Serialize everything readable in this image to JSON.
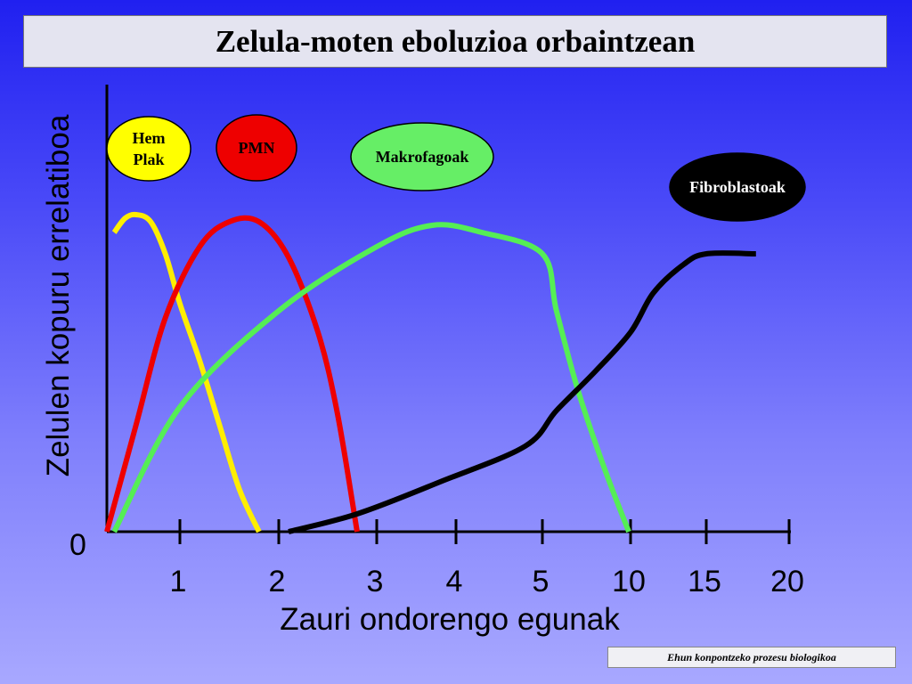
{
  "slide": {
    "title": "Zelula-moten eboluzioa orbaintzean",
    "footer": "Ehun konpontzeko prozesu biologikoa"
  },
  "chart_data": {
    "type": "line",
    "xlabel": "Zauri ondorengo egunak",
    "ylabel": "Zelulen kopuru errelatiboa",
    "y_tick_labels": [
      "0"
    ],
    "x_tick_labels": [
      "1",
      "2",
      "3",
      "4",
      "5",
      "10",
      "15",
      "20"
    ],
    "x_scale": "non-linear (1,2,3,4,5 then 10,15,20)",
    "series": [
      {
        "name": "Hem Plak",
        "color": "#ffee00",
        "label_bg": "#ffff00",
        "label_fg": "#000000",
        "x": [
          0.1,
          0.25,
          0.4,
          0.6,
          0.8,
          1.0,
          1.2,
          1.4,
          1.6,
          1.8
        ],
        "y": [
          0.84,
          0.88,
          0.89,
          0.87,
          0.78,
          0.64,
          0.48,
          0.3,
          0.12,
          0
        ]
      },
      {
        "name": "PMN",
        "color": "#ee0000",
        "label_bg": "#ee0000",
        "label_fg": "#000000",
        "x": [
          0,
          0.4,
          0.8,
          1.2,
          1.5,
          1.8,
          2.1,
          2.4,
          2.6,
          2.8
        ],
        "y": [
          0,
          0.3,
          0.6,
          0.8,
          0.87,
          0.87,
          0.77,
          0.56,
          0.33,
          0
        ]
      },
      {
        "name": "Makrofagoak",
        "color": "#55ee55",
        "label_bg": "#66ee66",
        "label_fg": "#000000",
        "x": [
          0.1,
          1,
          2,
          3,
          3.7,
          4.3,
          5,
          5.8,
          7,
          8.5,
          9.9
        ],
        "y": [
          0,
          0.35,
          0.62,
          0.8,
          0.86,
          0.84,
          0.78,
          0.62,
          0.4,
          0.18,
          0
        ]
      },
      {
        "name": "Fibroblastoak",
        "color": "#000000",
        "label_bg": "#000000",
        "label_fg": "#ffffff",
        "x": [
          2.1,
          2.8,
          3.8,
          4.8,
          5.8,
          8,
          10,
          11.5,
          13.5,
          15,
          18
        ],
        "y": [
          0,
          0.05,
          0.14,
          0.24,
          0.34,
          0.45,
          0.56,
          0.67,
          0.75,
          0.78,
          0.78
        ]
      }
    ]
  }
}
